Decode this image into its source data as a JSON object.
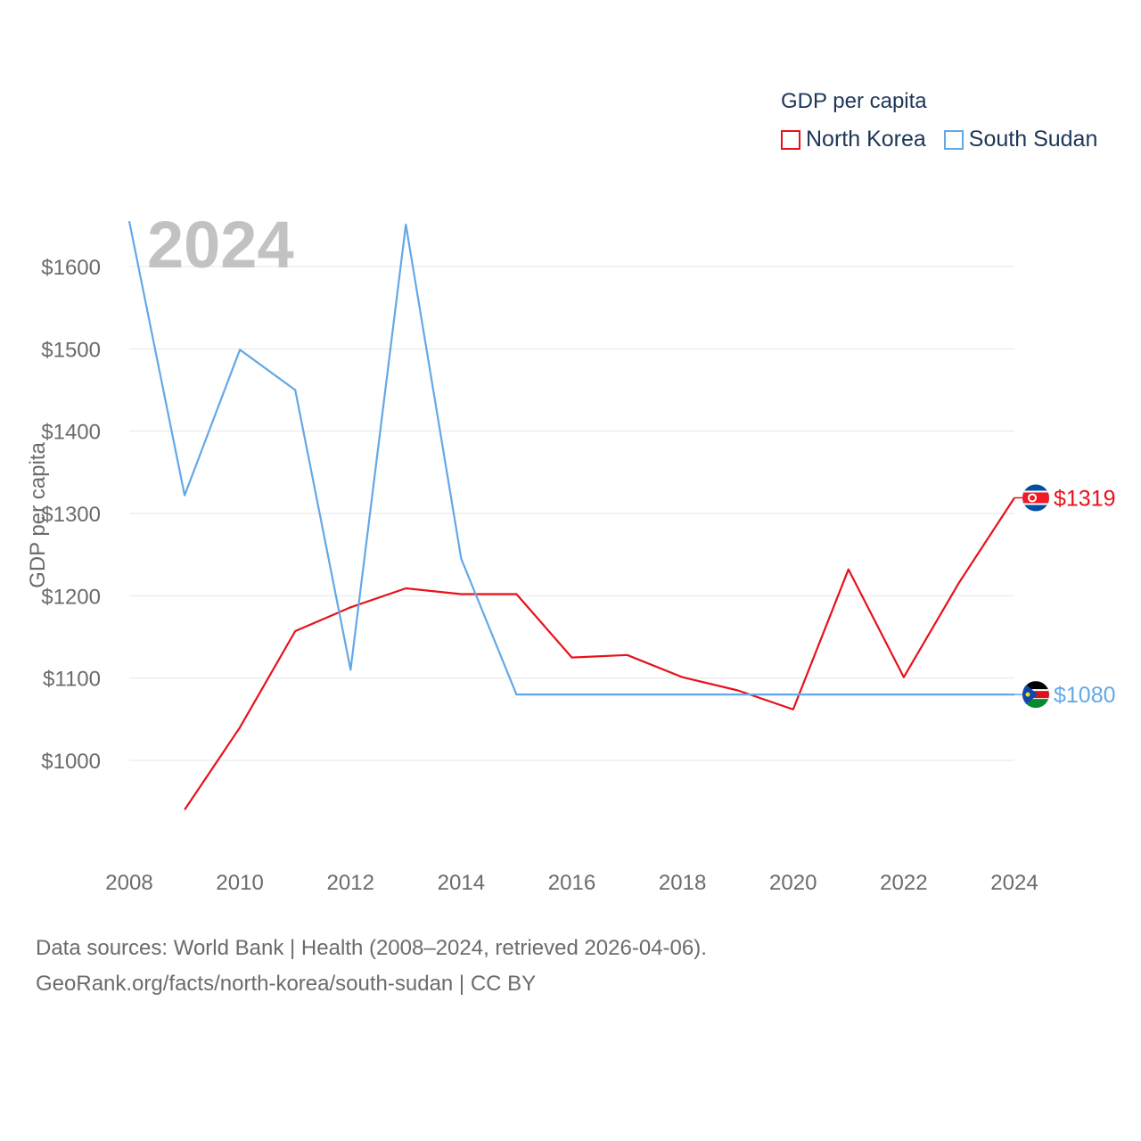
{
  "legend": {
    "title": "GDP per capita",
    "items": [
      {
        "label": "North Korea",
        "color": "#e8111b"
      },
      {
        "label": "South Sudan",
        "color": "#63a8e6"
      }
    ]
  },
  "source": {
    "line1": "Data sources: World Bank | Health (2008–2024, retrieved 2026-04-06).",
    "line2": "GeoRank.org/facts/north-korea/south-sudan | CC BY"
  },
  "chart_data": {
    "type": "line",
    "year_label": "2024",
    "ylabel": "GDP per capita",
    "xlim": [
      2008,
      2024
    ],
    "ylim": [
      900,
      1660
    ],
    "x_ticks": [
      2008,
      2010,
      2012,
      2014,
      2016,
      2018,
      2020,
      2022,
      2024
    ],
    "y_ticks": [
      1000,
      1100,
      1200,
      1300,
      1400,
      1500,
      1600
    ],
    "y_tick_labels": [
      "$1000",
      "$1100",
      "$1200",
      "$1300",
      "$1400",
      "$1500",
      "$1600"
    ],
    "series": [
      {
        "name": "North Korea",
        "color": "#e8111b",
        "end_label": "$1319",
        "flag": "north-korea",
        "x": [
          2009,
          2010,
          2011,
          2012,
          2013,
          2014,
          2015,
          2016,
          2017,
          2018,
          2019,
          2020,
          2021,
          2022,
          2023,
          2024
        ],
        "values": [
          940,
          1040,
          1157,
          1186,
          1209,
          1202,
          1202,
          1125,
          1128,
          1101,
          1085,
          1062,
          1232,
          1101,
          1216,
          1319
        ]
      },
      {
        "name": "South Sudan",
        "color": "#63a8e6",
        "end_label": "$1080",
        "flag": "south-sudan",
        "x": [
          2008,
          2009,
          2010,
          2011,
          2012,
          2013,
          2014,
          2015,
          2016,
          2017,
          2018,
          2019,
          2020,
          2021,
          2022,
          2023,
          2024
        ],
        "values": [
          1655,
          1322,
          1499,
          1450,
          1110,
          1651,
          1245,
          1080,
          1080,
          1080,
          1080,
          1080,
          1080,
          1080,
          1080,
          1080,
          1080
        ]
      }
    ]
  }
}
